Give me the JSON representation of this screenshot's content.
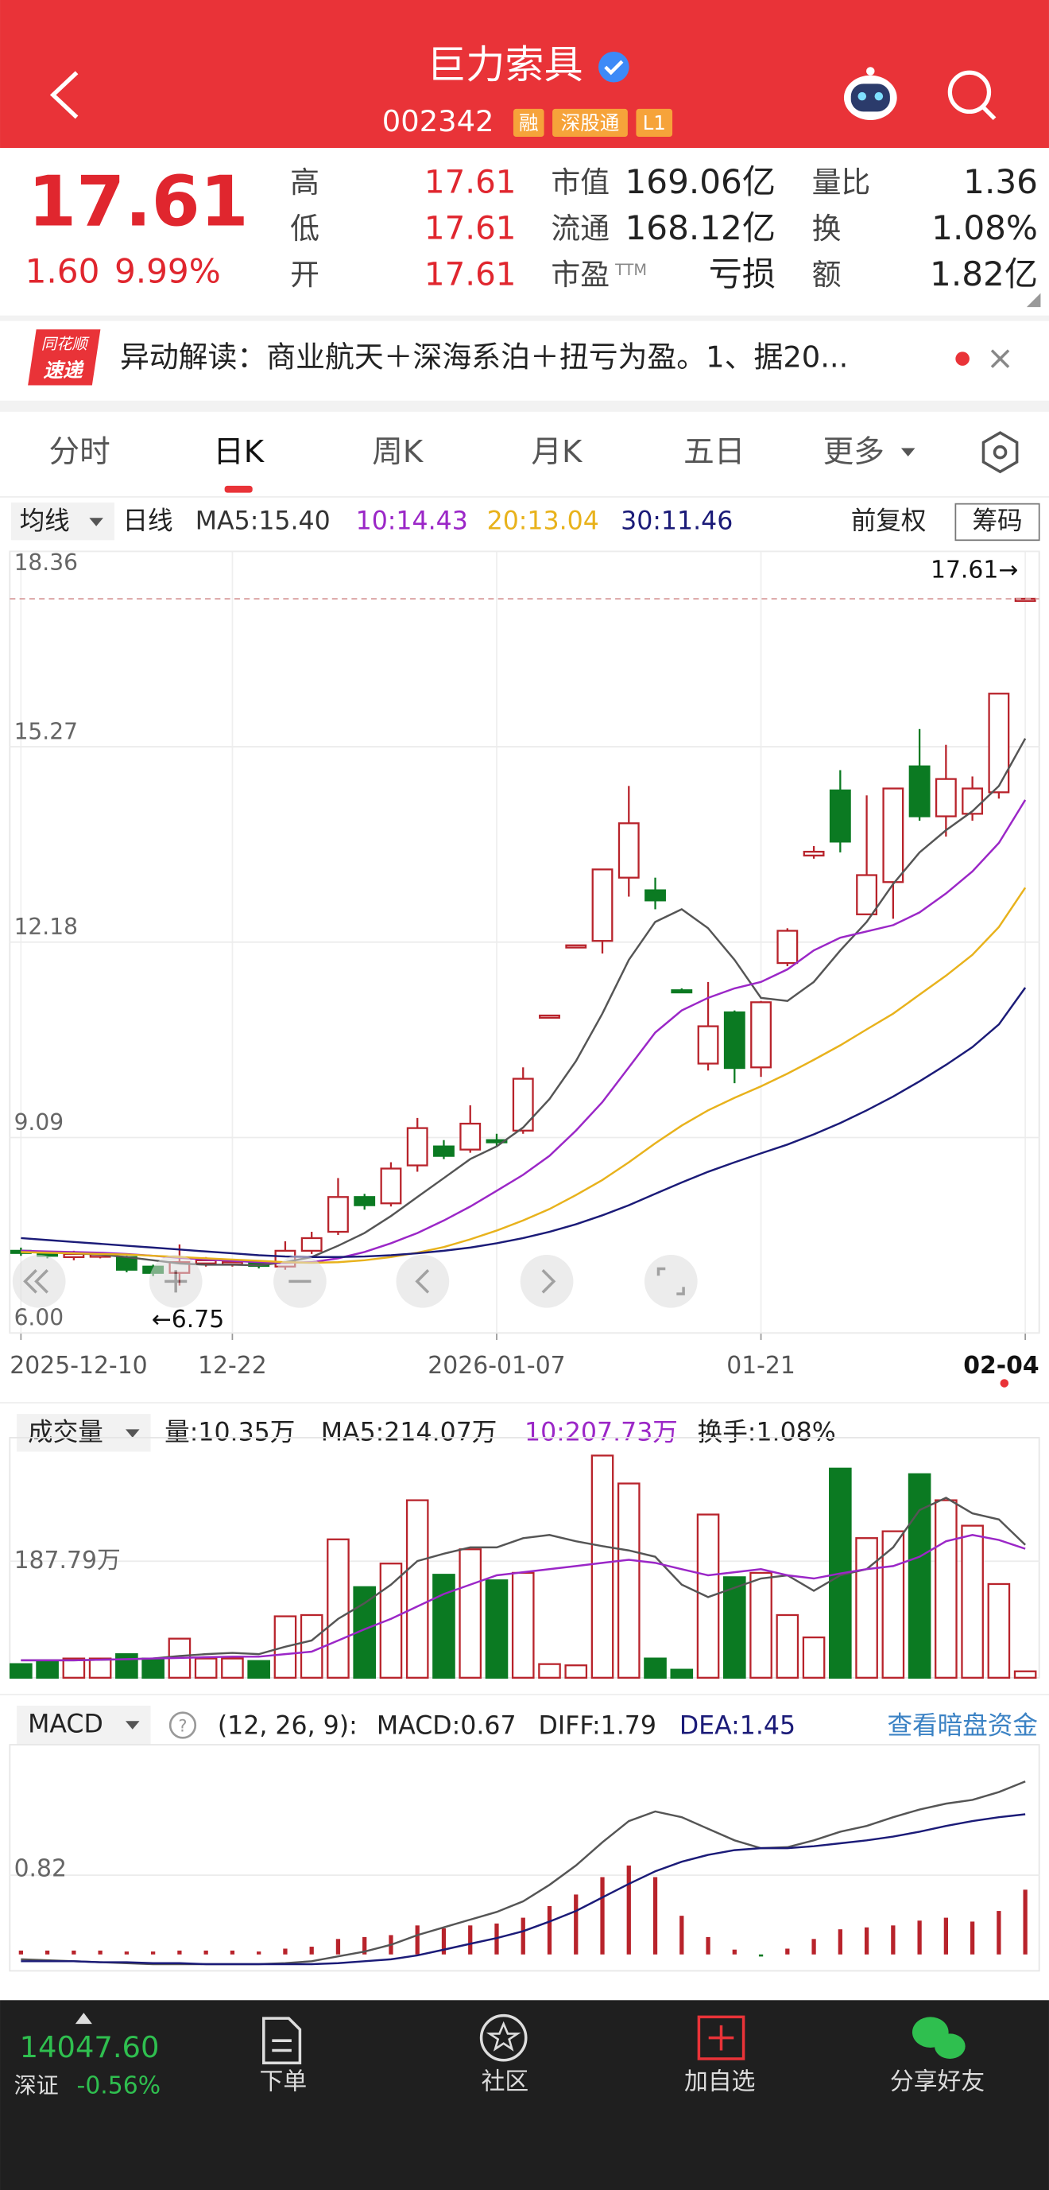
{
  "header": {
    "title": "巨力索具",
    "code": "002342",
    "badges": [
      "融",
      "深股通",
      "L1"
    ]
  },
  "quote": {
    "price": "17.61",
    "change": "1.60",
    "change_pct": "9.99%",
    "stats": [
      {
        "label": "高",
        "value": "17.61"
      },
      {
        "label": "低",
        "value": "17.61"
      },
      {
        "label": "开",
        "value": "17.61"
      },
      {
        "label": "市值",
        "value": "169.06亿"
      },
      {
        "label": "流通",
        "value": "168.12亿"
      },
      {
        "label": "市盈",
        "sup": "TTM",
        "value": "亏损"
      },
      {
        "label": "量比",
        "value": "1.36"
      },
      {
        "label": "换",
        "value": "1.08%"
      },
      {
        "label": "额",
        "value": "1.82亿"
      }
    ]
  },
  "news": {
    "source": [
      "同花顺",
      "速递"
    ],
    "text": "异动解读：商业航天＋深海系泊＋扭亏为盈。1、据20..."
  },
  "tabs": [
    "分时",
    "日K",
    "周K",
    "月K",
    "五日",
    "更多"
  ],
  "kline": {
    "ma_menu": "均线",
    "period": "日线",
    "ma_legend": [
      "MA5:15.40",
      "10:14.43",
      "20:13.04",
      "30:11.46"
    ],
    "adjust": "前复权",
    "chips": "筹码",
    "up_color": "#b8232b",
    "down_color": "#0b7a22",
    "ylim": [
      6,
      18.36
    ],
    "yticks": [
      18.36,
      15.27,
      12.18,
      9.09,
      {
        "value": 6,
        "label": "6.00"
      }
    ],
    "last_label": "17.61→",
    "low_label": "←6.75",
    "dates": [
      "2025-12-10",
      null,
      null,
      null,
      null,
      null,
      null,
      null,
      "12-22",
      null,
      null,
      null,
      null,
      null,
      null,
      null,
      null,
      null,
      "2026-01-07",
      null,
      null,
      null,
      null,
      null,
      null,
      null,
      null,
      null,
      "01-21",
      null,
      null,
      null,
      null,
      null,
      null,
      null,
      null,
      null,
      "02-04"
    ],
    "candles": {
      "open": [
        7.3,
        7.26,
        7.2,
        7.22,
        7.2,
        7.05,
        6.95,
        7.1,
        7.1,
        7.12,
        7.05,
        7.3,
        7.6,
        8.15,
        8.05,
        8.65,
        8.95,
        8.9,
        9.05,
        9.2,
        11.02,
        12.13,
        12.2,
        13.2,
        13.0,
        11.42,
        10.26,
        11.07,
        10.2,
        11.85,
        13.55,
        14.58,
        12.62,
        13.13,
        14.96,
        14.17,
        14.21,
        14.55,
        17.61
      ],
      "high": [
        7.35,
        7.3,
        7.3,
        7.28,
        7.22,
        7.08,
        7.4,
        7.2,
        7.16,
        7.14,
        7.45,
        7.6,
        8.45,
        8.2,
        8.7,
        9.4,
        9.05,
        9.6,
        9.15,
        10.2,
        11.02,
        12.13,
        13.33,
        14.65,
        13.2,
        11.45,
        11.55,
        11.1,
        11.25,
        12.4,
        13.7,
        14.9,
        14.5,
        14.61,
        15.55,
        15.3,
        14.8,
        16.11,
        17.61
      ],
      "low": [
        7.22,
        7.18,
        7.15,
        7.18,
        6.96,
        6.9,
        6.75,
        7.05,
        7.05,
        7.02,
        7.0,
        7.25,
        7.55,
        7.95,
        8.0,
        8.55,
        8.75,
        8.85,
        8.95,
        9.15,
        11.02,
        12.13,
        12.0,
        12.9,
        12.7,
        11.38,
        10.15,
        9.95,
        10.05,
        11.8,
        13.5,
        13.6,
        12.7,
        12.55,
        14.1,
        13.85,
        14.1,
        14.45,
        17.61
      ],
      "close": [
        7.28,
        7.22,
        7.25,
        7.24,
        7.0,
        6.95,
        7.12,
        7.15,
        7.12,
        7.06,
        7.3,
        7.5,
        8.15,
        8.02,
        8.6,
        9.24,
        8.8,
        9.31,
        9.02,
        10.02,
        11.02,
        12.13,
        13.33,
        14.06,
        12.84,
        11.4,
        10.85,
        10.19,
        11.23,
        12.36,
        13.61,
        13.77,
        13.24,
        14.61,
        14.17,
        14.76,
        14.61,
        16.11,
        17.61
      ]
    },
    "ma": [
      {
        "color": "#555555",
        "values": [
          7.3,
          7.28,
          7.26,
          7.24,
          7.2,
          7.15,
          7.1,
          7.08,
          7.08,
          7.07,
          7.12,
          7.2,
          7.38,
          7.58,
          7.85,
          8.15,
          8.45,
          8.75,
          8.95,
          9.25,
          9.7,
          10.3,
          11.05,
          11.9,
          12.5,
          12.7,
          12.4,
          11.9,
          11.3,
          11.25,
          11.55,
          12.05,
          12.5,
          13.1,
          13.6,
          13.95,
          14.25,
          14.65,
          15.4
        ]
      },
      {
        "color": "#9b27c7",
        "values": [
          7.3,
          7.29,
          7.28,
          7.27,
          7.25,
          7.22,
          7.19,
          7.16,
          7.14,
          7.12,
          7.11,
          7.12,
          7.18,
          7.28,
          7.42,
          7.58,
          7.78,
          8.0,
          8.25,
          8.5,
          8.8,
          9.2,
          9.65,
          10.2,
          10.75,
          11.1,
          11.3,
          11.45,
          11.55,
          11.75,
          12.05,
          12.25,
          12.35,
          12.45,
          12.65,
          12.95,
          13.3,
          13.75,
          14.43
        ]
      },
      {
        "color": "#e8b21c",
        "values": [
          7.28,
          7.27,
          7.26,
          7.25,
          7.24,
          7.22,
          7.2,
          7.18,
          7.16,
          7.14,
          7.12,
          7.11,
          7.12,
          7.15,
          7.2,
          7.27,
          7.36,
          7.48,
          7.62,
          7.78,
          7.96,
          8.18,
          8.42,
          8.7,
          9.0,
          9.28,
          9.52,
          9.72,
          9.9,
          10.1,
          10.32,
          10.55,
          10.8,
          11.05,
          11.35,
          11.65,
          11.98,
          12.42,
          13.04
        ]
      },
      {
        "color": "#1b1b78",
        "values": [
          7.5,
          7.47,
          7.44,
          7.41,
          7.38,
          7.35,
          7.32,
          7.29,
          7.26,
          7.23,
          7.21,
          7.2,
          7.2,
          7.21,
          7.23,
          7.26,
          7.3,
          7.35,
          7.42,
          7.5,
          7.6,
          7.72,
          7.86,
          8.02,
          8.2,
          8.38,
          8.55,
          8.7,
          8.84,
          8.98,
          9.14,
          9.32,
          9.52,
          9.74,
          9.98,
          10.24,
          10.52,
          10.88,
          11.46
        ]
      }
    ]
  },
  "volume": {
    "menu": "成交量",
    "legend": [
      "量:10.35万",
      "MA5:214.07万",
      "10:207.73万",
      "换手:1.08%"
    ],
    "ylim": [
      0,
      375.58
    ],
    "yticks": [
      {
        "value": 187.79,
        "label": "187.79万"
      }
    ],
    "values": [
      22,
      27,
      31,
      31,
      38,
      31,
      63,
      31,
      31,
      27,
      99,
      101,
      223,
      146,
      184,
      286,
      166,
      207,
      157,
      169,
      22,
      20,
      358,
      313,
      31,
      13,
      263,
      162,
      169,
      101,
      65,
      337,
      225,
      236,
      328,
      286,
      245,
      151,
      10.35
    ],
    "ma": [
      {
        "color": "#555555",
        "values": [
          28,
          28,
          28,
          29,
          30,
          31,
          35,
          38,
          40,
          38,
          50,
          60,
          95,
          120,
          150,
          188,
          200,
          210,
          210,
          225,
          230,
          220,
          212,
          205,
          195,
          150,
          130,
          145,
          160,
          165,
          140,
          165,
          175,
          210,
          270,
          290,
          265,
          255,
          214.07
        ]
      },
      {
        "color": "#9b27c7",
        "values": [
          28,
          28,
          28,
          29,
          30,
          31,
          32,
          33,
          34,
          34,
          38,
          42,
          60,
          78,
          95,
          115,
          135,
          150,
          165,
          170,
          175,
          180,
          185,
          190,
          185,
          175,
          165,
          170,
          175,
          165,
          160,
          168,
          175,
          180,
          195,
          220,
          230,
          222,
          207.73
        ]
      }
    ]
  },
  "macd": {
    "menu": "MACD",
    "params": "(12, 26, 9):",
    "legend": [
      "MACD:0.67",
      "DIFF:1.79",
      "DEA:1.45"
    ],
    "link": "查看暗盘资金",
    "ylim": [
      -0.17,
      2.17
    ],
    "yticks": [
      0.82
    ],
    "up_color": "#b8232b",
    "down_color": "#0b7a22",
    "bars": [
      0.04,
      0.04,
      0.04,
      0.04,
      0.03,
      0.03,
      0.04,
      0.04,
      0.04,
      0.03,
      0.06,
      0.08,
      0.16,
      0.18,
      0.2,
      0.3,
      0.27,
      0.3,
      0.32,
      0.38,
      0.5,
      0.62,
      0.8,
      0.92,
      0.8,
      0.4,
      0.18,
      0.05,
      -0.01,
      0.06,
      0.16,
      0.26,
      0.28,
      0.3,
      0.35,
      0.38,
      0.34,
      0.45,
      0.67
    ],
    "diff": {
      "color": "#555555",
      "values": [
        -0.05,
        -0.06,
        -0.07,
        -0.08,
        -0.09,
        -0.1,
        -0.1,
        -0.1,
        -0.1,
        -0.1,
        -0.09,
        -0.07,
        -0.02,
        0.03,
        0.1,
        0.2,
        0.28,
        0.36,
        0.44,
        0.55,
        0.72,
        0.92,
        1.16,
        1.38,
        1.48,
        1.42,
        1.3,
        1.18,
        1.1,
        1.11,
        1.18,
        1.27,
        1.33,
        1.42,
        1.5,
        1.56,
        1.6,
        1.68,
        1.79
      ]
    },
    "dea": {
      "color": "#1b1b78",
      "values": [
        -0.07,
        -0.07,
        -0.07,
        -0.08,
        -0.08,
        -0.09,
        -0.09,
        -0.1,
        -0.1,
        -0.1,
        -0.1,
        -0.1,
        -0.09,
        -0.07,
        -0.05,
        -0.01,
        0.05,
        0.11,
        0.17,
        0.24,
        0.34,
        0.45,
        0.59,
        0.73,
        0.86,
        0.96,
        1.03,
        1.08,
        1.1,
        1.1,
        1.12,
        1.15,
        1.18,
        1.22,
        1.27,
        1.33,
        1.38,
        1.42,
        1.45
      ]
    }
  },
  "footer": {
    "index_value": "14047.60",
    "index_name": "深证",
    "index_change": "-0.56%",
    "nav": [
      "下单",
      "社区",
      "加自选",
      "分享好友"
    ]
  }
}
